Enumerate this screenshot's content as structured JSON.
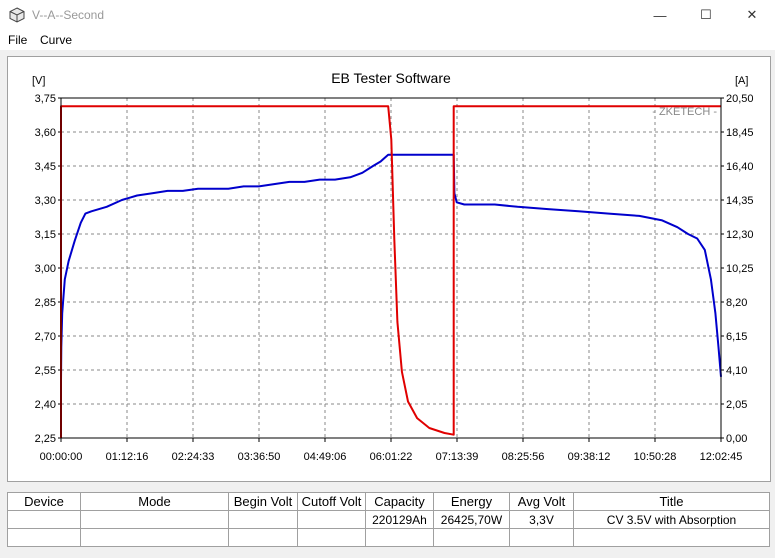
{
  "window": {
    "title": "V--A--Second",
    "minimize": "—",
    "maximize": "☐",
    "close": "✕"
  },
  "menu": {
    "items": [
      "File",
      "Curve"
    ]
  },
  "chart_data": {
    "type": "line",
    "title": "EB Tester Software",
    "watermark": "- ZKETECH -",
    "y_left_unit": "[V]",
    "y_right_unit": "[A]",
    "y_left_ticks": [
      "3,75",
      "3,60",
      "3,45",
      "3,30",
      "3,15",
      "3,00",
      "2,85",
      "2,70",
      "2,55",
      "2,40",
      "2,25"
    ],
    "y_right_ticks": [
      "20,50",
      "18,45",
      "16,40",
      "14,35",
      "12,30",
      "10,25",
      "8,20",
      "6,15",
      "4,10",
      "2,05",
      "0,00"
    ],
    "x_ticks": [
      "00:00:00",
      "01:12:16",
      "02:24:33",
      "03:36:50",
      "04:49:06",
      "06:01:22",
      "07:13:39",
      "08:25:56",
      "09:38:12",
      "10:50:28",
      "12:02:45"
    ],
    "ylim_left": [
      2.25,
      3.75
    ],
    "ylim_right": [
      0,
      20.5
    ],
    "xlim_seconds": [
      0,
      43365
    ],
    "grid": true,
    "series": [
      {
        "axis": "left",
        "color": "#0000cc",
        "points": [
          [
            0,
            2.5
          ],
          [
            20,
            2.65
          ],
          [
            80,
            2.8
          ],
          [
            250,
            2.95
          ],
          [
            500,
            3.03
          ],
          [
            900,
            3.12
          ],
          [
            1300,
            3.2
          ],
          [
            1600,
            3.24
          ],
          [
            2000,
            3.25
          ],
          [
            3000,
            3.27
          ],
          [
            4000,
            3.3
          ],
          [
            5000,
            3.32
          ],
          [
            6000,
            3.33
          ],
          [
            7000,
            3.34
          ],
          [
            8000,
            3.34
          ],
          [
            9000,
            3.35
          ],
          [
            10000,
            3.35
          ],
          [
            11000,
            3.35
          ],
          [
            12000,
            3.36
          ],
          [
            13000,
            3.36
          ],
          [
            14000,
            3.37
          ],
          [
            15000,
            3.38
          ],
          [
            16000,
            3.38
          ],
          [
            17000,
            3.39
          ],
          [
            18000,
            3.39
          ],
          [
            19000,
            3.4
          ],
          [
            19800,
            3.42
          ],
          [
            20500,
            3.45
          ],
          [
            21000,
            3.47
          ],
          [
            21500,
            3.5
          ],
          [
            21550,
            3.5
          ],
          [
            25800,
            3.5
          ],
          [
            25850,
            3.33
          ],
          [
            26000,
            3.29
          ],
          [
            26500,
            3.28
          ],
          [
            27500,
            3.28
          ],
          [
            28500,
            3.28
          ],
          [
            30000,
            3.27
          ],
          [
            32000,
            3.26
          ],
          [
            34000,
            3.25
          ],
          [
            36000,
            3.24
          ],
          [
            38000,
            3.23
          ],
          [
            39500,
            3.21
          ],
          [
            40500,
            3.18
          ],
          [
            41200,
            3.15
          ],
          [
            41800,
            3.13
          ],
          [
            42300,
            3.08
          ],
          [
            42700,
            2.95
          ],
          [
            43000,
            2.8
          ],
          [
            43200,
            2.65
          ],
          [
            43365,
            2.52
          ]
        ]
      },
      {
        "axis": "right",
        "color": "#e00000",
        "points": [
          [
            0,
            0
          ],
          [
            1,
            20.0
          ],
          [
            21500,
            20.0
          ],
          [
            21700,
            18.0
          ],
          [
            21900,
            12.0
          ],
          [
            22100,
            7.0
          ],
          [
            22400,
            4.0
          ],
          [
            22800,
            2.2
          ],
          [
            23400,
            1.2
          ],
          [
            24200,
            0.6
          ],
          [
            25200,
            0.3
          ],
          [
            25800,
            0.2
          ],
          [
            25801,
            20.0
          ],
          [
            43365,
            20.0
          ]
        ]
      }
    ]
  },
  "table": {
    "headers": [
      "Device",
      "Mode",
      "Begin Volt",
      "Cutoff Volt",
      "Capacity",
      "Energy",
      "Avg Volt",
      "Title"
    ],
    "rows": [
      [
        "",
        "",
        "",
        "",
        "220129Ah",
        "26425,70W",
        "3,3V",
        "CV 3.5V with Absorption"
      ],
      [
        "",
        "",
        "",
        "",
        "",
        "",
        "",
        ""
      ]
    ]
  }
}
